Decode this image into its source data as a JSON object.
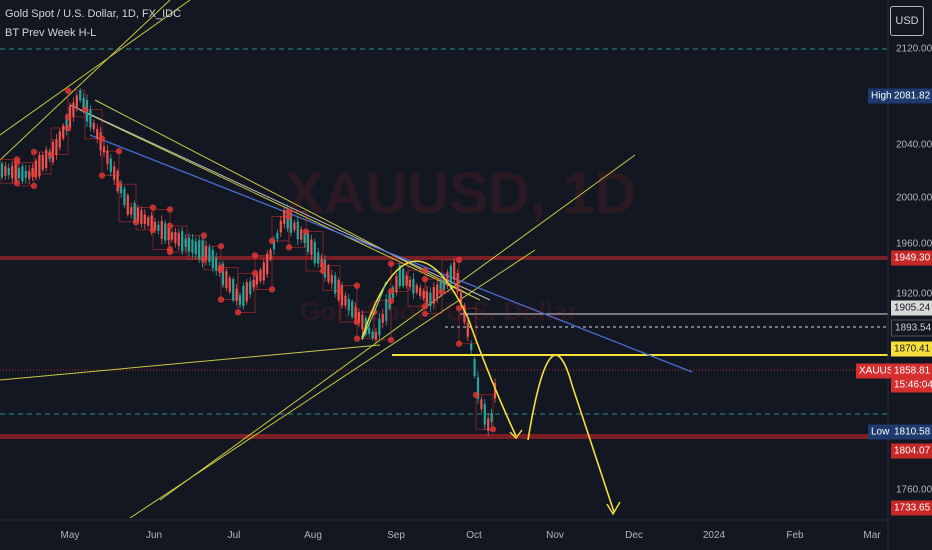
{
  "header": {
    "symbol_line": "Gold Spot / U.S. Dollar, 1D, FX_IDC",
    "indicator": "BT Prev Week H-L",
    "watermark_symbol": "XAUUSD, 1D",
    "watermark_name": "Gold Spot / U.S. Dollar"
  },
  "currency_button": "USD",
  "price_axis": {
    "ticks": [
      "2120.00",
      "2040.00",
      "2000.00",
      "1960.00",
      "1920.00",
      "1760.00"
    ]
  },
  "price_labels": {
    "high_tag": "High",
    "high_value": "2081.82",
    "low_tag": "Low",
    "low_value": "1810.58",
    "prev_week_high": "1949.30",
    "level_white": "1905.24",
    "level_dashed": "1893.54",
    "level_yellow": "1870.41",
    "symbol_tag": "XAUUSD",
    "last_price": "1858.81",
    "countdown": "15:46:04",
    "prev_week_low": "1804.07",
    "projection_low": "1733.65"
  },
  "time_axis": {
    "labels": [
      "May",
      "Jun",
      "Jul",
      "Aug",
      "Sep",
      "Oct",
      "Nov",
      "Dec",
      "2024",
      "Feb",
      "Mar"
    ]
  },
  "colors": {
    "background": "#131722",
    "up_candle": "#26a69a",
    "down_candle": "#ef5350",
    "week_box": "#d32f2f",
    "trendline_yellow": "#d4d444",
    "trendline_blue": "#4a6fd1",
    "projection": "#f5e03b",
    "hline_red": "#c62828",
    "cyan_dashed": "#2a8c8c"
  },
  "chart_data": {
    "type": "candlestick",
    "symbol": "XAUUSD",
    "timeframe": "1D",
    "price_range": [
      1715,
      2140
    ],
    "levels": {
      "high": 2081.82,
      "prev_week_high": 1949.3,
      "level_white": 1905.24,
      "level_dashed": 1893.54,
      "level_yellow": 1870.41,
      "last": 1858.81,
      "low": 1810.58,
      "prev_week_low": 1804.07,
      "projection_target": 1733.65
    }
  }
}
